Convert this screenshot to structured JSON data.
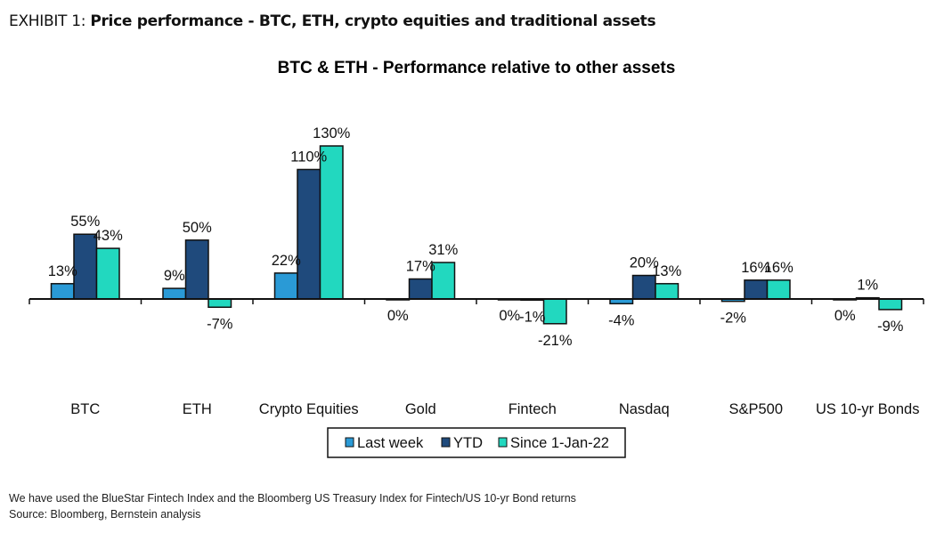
{
  "exhibit": {
    "label": "EXHIBIT 1:",
    "title": "Price performance - BTC, ETH, crypto equities and traditional assets"
  },
  "chart_data": {
    "type": "bar",
    "title": "BTC & ETH - Performance relative to other assets",
    "categories": [
      "BTC",
      "ETH",
      "Crypto Equities",
      "Gold",
      "Fintech",
      "Nasdaq",
      "S&P500",
      "US 10-yr Bonds"
    ],
    "series": [
      {
        "name": "Last week",
        "color": "#2a9ad6",
        "values": [
          13,
          9,
          22,
          0,
          0,
          -4,
          -2,
          0
        ]
      },
      {
        "name": "YTD",
        "color": "#1f4a7c",
        "values": [
          55,
          50,
          110,
          17,
          -1,
          20,
          16,
          1
        ]
      },
      {
        "name": "Since 1-Jan-22",
        "color": "#22d8bf",
        "values": [
          43,
          -7,
          130,
          31,
          -21,
          13,
          16,
          -9
        ]
      }
    ],
    "unit": "%",
    "data_labels": true,
    "grid": false,
    "legend_position": "bottom",
    "ylim": [
      -30,
      130
    ]
  },
  "footnotes": {
    "note": "We have used the BlueStar Fintech Index and the Bloomberg US Treasury Index for Fintech/US 10-yr Bond returns",
    "source": "Source: Bloomberg, Bernstein analysis"
  }
}
